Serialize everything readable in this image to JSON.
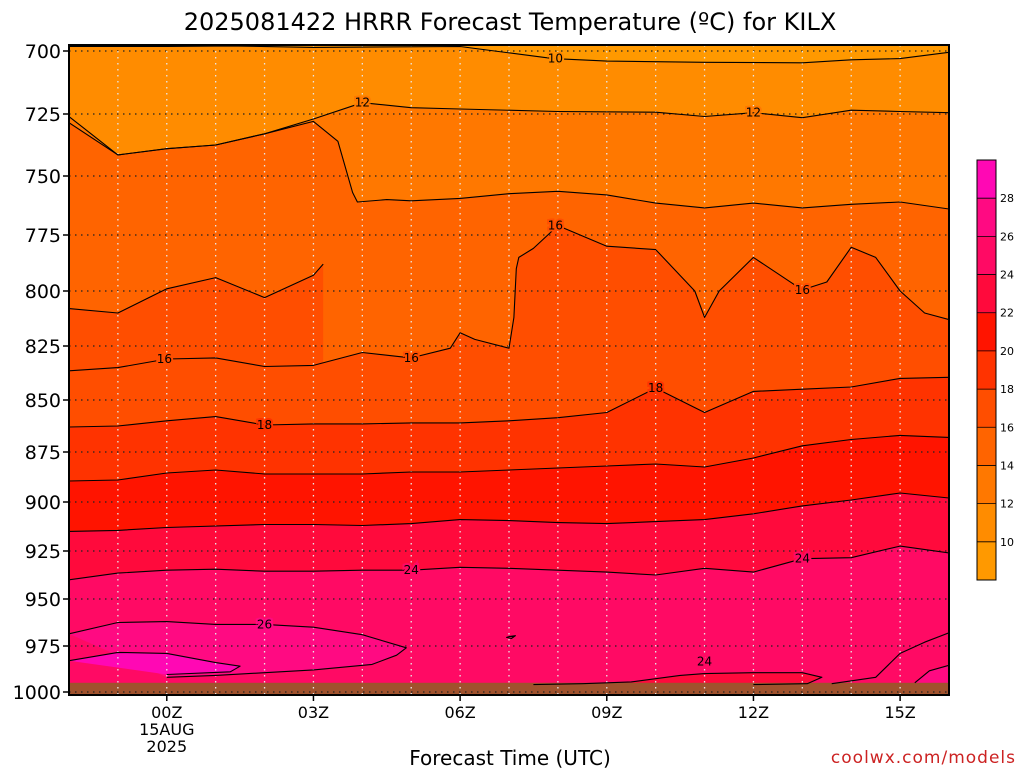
{
  "chart_data": {
    "type": "contour",
    "title": "2025081422 HRRR Forecast Temperature (ºC) for KILX",
    "xlabel": "Forecast Time (UTC)",
    "ylabel": "",
    "credit": "coolwx.com/models",
    "x_ticks": [
      {
        "hour": 0,
        "lines": [
          "00Z",
          "15AUG",
          "2025"
        ]
      },
      {
        "hour": 3,
        "lines": [
          "03Z"
        ]
      },
      {
        "hour": 6,
        "lines": [
          "06Z"
        ]
      },
      {
        "hour": 9,
        "lines": [
          "09Z"
        ]
      },
      {
        "hour": 12,
        "lines": [
          "12Z"
        ]
      },
      {
        "hour": 15,
        "lines": [
          "15Z"
        ]
      }
    ],
    "xlim_hours": [
      -2,
      16
    ],
    "y_ticks_hpa": [
      700,
      725,
      750,
      775,
      800,
      825,
      850,
      875,
      900,
      925,
      950,
      975,
      1000
    ],
    "ylim_hpa": [
      698,
      1000
    ],
    "surface_pressure_hpa": 995,
    "ground_color": "#a0522d",
    "grid": true,
    "colorbar": {
      "levels": [
        8,
        10,
        12,
        14,
        16,
        18,
        20,
        22,
        24,
        26,
        28,
        30
      ],
      "tick_labels": [
        "10",
        "12",
        "14",
        "16",
        "18",
        "20",
        "22",
        "24",
        "26",
        "28"
      ],
      "colors": [
        "#ff9900",
        "#ff8c00",
        "#ff7800",
        "#ff6400",
        "#ff4e00",
        "#ff3300",
        "#ff1400",
        "#ff0a3c",
        "#ff0a64",
        "#ff0a82",
        "#ff08b4"
      ],
      "position": "right"
    },
    "isotherms": [
      {
        "value": 10,
        "labels": [
          {
            "text": "10",
            "x_hour": 7.95,
            "p_hpa": 703
          }
        ],
        "points": [
          [
            -2,
            698.5
          ],
          [
            0,
            698.5
          ],
          [
            1.3,
            698.3
          ],
          [
            3,
            698.8
          ],
          [
            6,
            698.5
          ],
          [
            7.9,
            703
          ],
          [
            9,
            704
          ],
          [
            11,
            704.5
          ],
          [
            13,
            704.7
          ],
          [
            14,
            703.5
          ],
          [
            15,
            703
          ],
          [
            16,
            700.5
          ]
        ]
      },
      {
        "value": 12,
        "labels": [
          {
            "text": "12",
            "x_hour": 4.0,
            "p_hpa": 720.5
          },
          {
            "text": "12",
            "x_hour": 12.0,
            "p_hpa": 724.5
          }
        ],
        "points": [
          [
            -2,
            726
          ],
          [
            -1,
            741.5
          ],
          [
            0,
            739
          ],
          [
            1,
            737.5
          ],
          [
            2,
            733
          ],
          [
            3,
            727
          ],
          [
            4,
            720.5
          ],
          [
            5,
            722.5
          ],
          [
            6,
            723
          ],
          [
            8,
            724
          ],
          [
            10,
            724.3
          ],
          [
            11,
            726
          ],
          [
            12,
            724.5
          ],
          [
            13,
            726.5
          ],
          [
            14,
            723.5
          ],
          [
            15,
            724
          ],
          [
            16,
            724.5
          ]
        ]
      },
      {
        "value": 14,
        "labels": [],
        "points": [
          [
            -2,
            728.5
          ],
          [
            -1,
            741.5
          ],
          [
            0,
            739
          ],
          [
            1,
            737.5
          ],
          [
            2,
            733
          ],
          [
            3,
            728
          ],
          [
            3.5,
            736
          ],
          [
            3.8,
            757
          ],
          [
            3.9,
            761
          ],
          [
            4.5,
            760
          ],
          [
            5,
            760.5
          ],
          [
            6,
            759.5
          ],
          [
            7,
            757.5
          ],
          [
            8,
            756.5
          ],
          [
            9,
            758
          ],
          [
            10,
            761.5
          ],
          [
            11,
            763.5
          ],
          [
            12,
            761.5
          ],
          [
            13,
            763.5
          ],
          [
            14,
            762
          ],
          [
            15,
            761
          ],
          [
            16,
            764
          ]
        ]
      },
      {
        "value": 16,
        "labels": [
          {
            "text": "16",
            "x_hour": -0.05,
            "p_hpa": 831
          },
          {
            "text": "16",
            "x_hour": 5.0,
            "p_hpa": 830.5
          },
          {
            "text": "16",
            "x_hour": 7.95,
            "p_hpa": 771
          },
          {
            "text": "16",
            "x_hour": 13.0,
            "p_hpa": 799.5
          }
        ],
        "points": [
          [
            -2,
            836.5
          ],
          [
            -1,
            835
          ],
          [
            0,
            831
          ],
          [
            1,
            830.5
          ],
          [
            2,
            834.5
          ],
          [
            3,
            834
          ],
          [
            4,
            828
          ],
          [
            5,
            830.5
          ],
          [
            5.8,
            826
          ],
          [
            6,
            819
          ],
          [
            6.3,
            822
          ],
          [
            7,
            826
          ],
          [
            7.1,
            812
          ],
          [
            7.15,
            790
          ],
          [
            7.2,
            785
          ],
          [
            7.5,
            781
          ],
          [
            8,
            771
          ],
          [
            9,
            780
          ],
          [
            10,
            781.5
          ],
          [
            10.8,
            800
          ],
          [
            11,
            812
          ],
          [
            11.3,
            800
          ],
          [
            12,
            785
          ],
          [
            13,
            799.5
          ],
          [
            13.5,
            796
          ],
          [
            14,
            780.5
          ],
          [
            14.5,
            785
          ],
          [
            15,
            800
          ],
          [
            15.5,
            810
          ],
          [
            16,
            813
          ]
        ]
      },
      {
        "value": 16,
        "labels": [],
        "points": [
          [
            -2,
            808
          ],
          [
            -1,
            810
          ],
          [
            0,
            799
          ],
          [
            1,
            794
          ],
          [
            2,
            803
          ],
          [
            3,
            793
          ],
          [
            3.2,
            788
          ]
        ]
      },
      {
        "value": 18,
        "labels": [
          {
            "text": "18",
            "x_hour": 2.0,
            "p_hpa": 862
          },
          {
            "text": "18",
            "x_hour": 10.0,
            "p_hpa": 844.5
          }
        ],
        "points": [
          [
            -2,
            863
          ],
          [
            -1,
            862.5
          ],
          [
            0,
            860
          ],
          [
            1,
            858
          ],
          [
            2,
            862
          ],
          [
            3,
            861.5
          ],
          [
            4,
            861.5
          ],
          [
            5,
            861
          ],
          [
            6,
            861
          ],
          [
            7,
            860
          ],
          [
            8,
            858.5
          ],
          [
            9,
            856
          ],
          [
            10,
            844.5
          ],
          [
            11,
            856
          ],
          [
            12,
            846
          ],
          [
            13,
            845
          ],
          [
            14,
            844
          ],
          [
            15,
            840
          ],
          [
            16,
            839.5
          ]
        ]
      },
      {
        "value": 20,
        "labels": [],
        "points": [
          [
            -2,
            889.5
          ],
          [
            -1,
            889
          ],
          [
            0,
            885.5
          ],
          [
            1,
            884
          ],
          [
            2,
            886
          ],
          [
            4,
            886
          ],
          [
            5,
            885
          ],
          [
            6,
            885
          ],
          [
            7,
            884
          ],
          [
            8,
            883
          ],
          [
            9,
            882
          ],
          [
            10,
            881
          ],
          [
            11,
            882.5
          ],
          [
            12,
            878
          ],
          [
            13,
            872
          ],
          [
            14,
            869
          ],
          [
            15,
            867
          ],
          [
            16,
            868
          ]
        ]
      },
      {
        "value": 22,
        "labels": [],
        "points": [
          [
            -2,
            915
          ],
          [
            -1,
            914.5
          ],
          [
            0,
            913
          ],
          [
            2,
            911.5
          ],
          [
            3,
            911.5
          ],
          [
            4,
            912
          ],
          [
            5,
            911
          ],
          [
            6,
            909
          ],
          [
            7,
            909.5
          ],
          [
            8,
            910.5
          ],
          [
            9,
            911
          ],
          [
            10,
            910
          ],
          [
            11,
            909
          ],
          [
            12,
            906
          ],
          [
            13,
            902
          ],
          [
            14,
            899
          ],
          [
            15,
            895.5
          ],
          [
            16,
            898
          ]
        ]
      },
      {
        "value": 24,
        "labels": [
          {
            "text": "24",
            "x_hour": 5.0,
            "p_hpa": 935
          },
          {
            "text": "24",
            "x_hour": 13.0,
            "p_hpa": 929
          }
        ],
        "points": [
          [
            -2,
            940
          ],
          [
            -1,
            936.5
          ],
          [
            0,
            935
          ],
          [
            1,
            934.5
          ],
          [
            2,
            935.5
          ],
          [
            3,
            935.5
          ],
          [
            4,
            935
          ],
          [
            5,
            935
          ],
          [
            6,
            933.5
          ],
          [
            7,
            934
          ],
          [
            8,
            935
          ],
          [
            9,
            936
          ],
          [
            10,
            937.5
          ],
          [
            11,
            934
          ],
          [
            12,
            936
          ],
          [
            13,
            929
          ],
          [
            14,
            928.5
          ],
          [
            15,
            922.5
          ],
          [
            16,
            926
          ]
        ]
      },
      {
        "value": 26,
        "labels": [
          {
            "text": "26",
            "x_hour": 2.0,
            "p_hpa": 963.5
          }
        ],
        "points": [
          [
            -2,
            968.5
          ],
          [
            -1,
            962.5
          ],
          [
            0,
            962
          ],
          [
            1,
            963.5
          ],
          [
            2,
            963.5
          ],
          [
            3,
            965
          ],
          [
            4,
            969
          ],
          [
            4.9,
            976
          ],
          [
            4.7,
            980
          ],
          [
            4.2,
            985
          ],
          [
            3,
            988
          ],
          [
            2,
            989.5
          ],
          [
            1,
            991
          ],
          [
            0,
            992
          ]
        ]
      },
      {
        "value": 28,
        "labels": [],
        "points": [
          [
            -2,
            983
          ],
          [
            -1,
            978.5
          ],
          [
            0,
            979
          ],
          [
            1,
            984
          ],
          [
            1.5,
            986
          ],
          [
            1.3,
            989
          ],
          [
            0,
            990.5
          ]
        ]
      },
      {
        "value": 24,
        "labels": [
          {
            "text": "24",
            "x_hour": 11.0,
            "p_hpa": 983.5
          }
        ],
        "points": [
          [
            7.5,
            996
          ],
          [
            8.5,
            995.5
          ],
          [
            9.5,
            994.5
          ],
          [
            10.5,
            991
          ],
          [
            11,
            990
          ],
          [
            12,
            989.5
          ],
          [
            13,
            989.5
          ],
          [
            13.4,
            992
          ],
          [
            13.1,
            995.5
          ],
          [
            12,
            996
          ]
        ]
      },
      {
        "value": 24,
        "labels": [],
        "points": [
          [
            13.6,
            995.5
          ],
          [
            14.5,
            992
          ],
          [
            15,
            979
          ],
          [
            15.5,
            973
          ],
          [
            16,
            968
          ]
        ]
      },
      {
        "value": 26,
        "labels": [],
        "points": [
          [
            15.3,
            995
          ],
          [
            15.6,
            988.5
          ],
          [
            16,
            985.5
          ]
        ]
      },
      {
        "value": 24,
        "labels": [],
        "points": [
          [
            7.0,
            970
          ],
          [
            7.13,
            969.5
          ],
          [
            7.05,
            971
          ],
          [
            6.95,
            970.4
          ],
          [
            7.0,
            970
          ]
        ]
      }
    ]
  }
}
